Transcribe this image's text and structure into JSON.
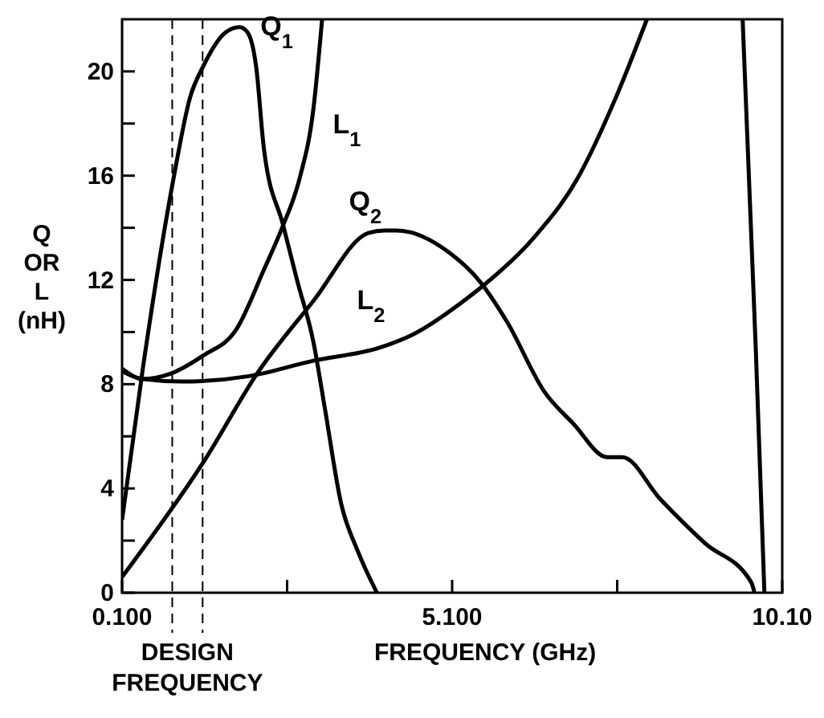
{
  "chart_data": {
    "type": "line",
    "xlabel": "FREQUENCY (GHz)",
    "ylabel": "Q OR L (nH)",
    "annotations": [
      "DESIGN FREQUENCY"
    ],
    "xlim": [
      0.1,
      10.1
    ],
    "ylim": [
      0,
      22
    ],
    "xticks": [
      {
        "value": 0.1,
        "label": "0.100"
      },
      {
        "value": 2.6,
        "label": null
      },
      {
        "value": 5.1,
        "label": "5.100"
      },
      {
        "value": 7.6,
        "label": null
      },
      {
        "value": 10.1,
        "label": "10.10"
      }
    ],
    "yticks": [
      0,
      {
        "value": 2,
        "label": null
      },
      4,
      {
        "value": 6,
        "label": null
      },
      8,
      {
        "value": 10,
        "label": null
      },
      12,
      {
        "value": 14,
        "label": null
      },
      16,
      {
        "value": 18,
        "label": null
      },
      20
    ],
    "grid": false,
    "marker": "none",
    "line_style": "solid",
    "ref_lines": [
      {
        "axis": "x",
        "value": 0.86,
        "color": "#000000",
        "line_style": "dashed"
      },
      {
        "axis": "x",
        "value": 1.32,
        "color": "#000000",
        "line_style": "dashed"
      }
    ],
    "series": [
      {
        "name": "Q$_{1}$",
        "color": "#000000",
        "x": [
          0.1,
          0.42,
          0.88,
          1.13,
          1.33,
          1.67,
          1.88,
          2.0,
          2.13,
          2.25,
          2.54,
          2.75,
          3.0,
          3.17,
          3.42,
          3.67,
          3.96
        ],
        "values": [
          2.8,
          8.7,
          15.9,
          19.0,
          20.2,
          21.5,
          21.7,
          21.5,
          20.2,
          17.0,
          14.1,
          12.0,
          9.6,
          7.1,
          3.4,
          1.6,
          0
        ]
      },
      {
        "name": "L$_{1}$",
        "color": "#000000",
        "x": [
          0.1,
          0.42,
          0.83,
          1.33,
          1.83,
          2.25,
          2.54,
          2.79,
          3.0,
          3.13
        ],
        "values": [
          8.6,
          8.2,
          8.4,
          9.1,
          10.1,
          12.4,
          14.1,
          15.9,
          18.6,
          22
        ]
      },
      {
        "name": "Q$_{2}$",
        "color": "#000000",
        "x": [
          0.1,
          1.33,
          2.17,
          3.0,
          3.83,
          4.08,
          4.25,
          5.08,
          5.5,
          5.93,
          6.5,
          6.93,
          7.45,
          7.68,
          8.25,
          8.93,
          9.63,
          9.68
        ],
        "values": [
          0.6,
          5.0,
          8.5,
          11.2,
          13.8,
          13.9,
          13.9,
          13.0,
          12.0,
          10.4,
          7.7,
          6.5,
          5.2,
          5.2,
          3.6,
          1.9,
          0.4,
          0
        ]
      },
      {
        "name": "L$_{2}$",
        "color": "#000000",
        "x": [
          0.1,
          0.4,
          1.0,
          2.0,
          3.0,
          4.0,
          4.5,
          5.33,
          5.58,
          6.33,
          7.0,
          7.58,
          8.05
        ],
        "values": [
          8.5,
          8.2,
          8.1,
          8.3,
          8.9,
          9.4,
          9.9,
          11.3,
          11.8,
          13.6,
          15.9,
          19.0,
          22
        ]
      },
      {
        "color": "#000000",
        "x": [
          9.5,
          9.7,
          9.83
        ],
        "values": [
          22,
          9.3,
          0
        ]
      }
    ]
  }
}
